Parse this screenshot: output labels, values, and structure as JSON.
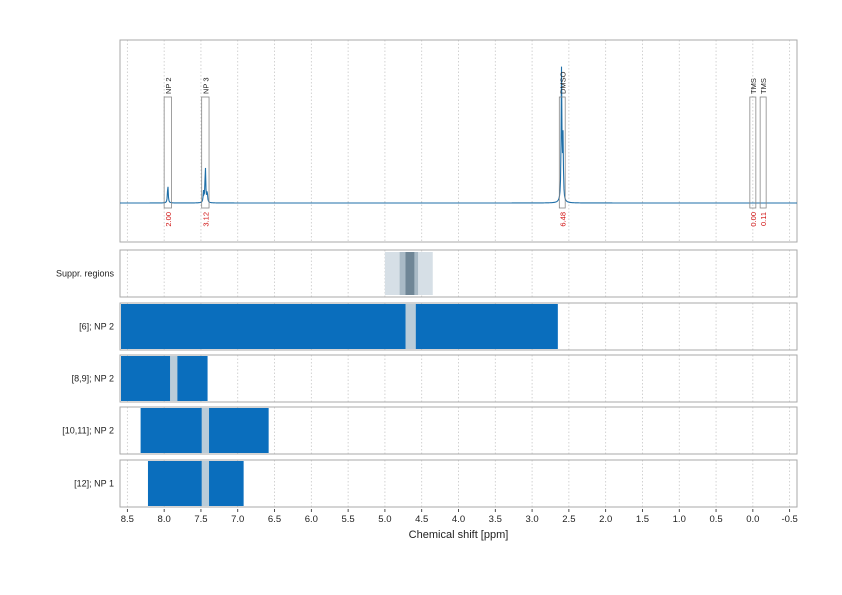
{
  "chart_data": {
    "type": "line",
    "xlabel": "Chemical shift [ppm]",
    "xlim": [
      8.6,
      -0.6
    ],
    "x_reversed": true,
    "x_ticks": [
      8.5,
      8.0,
      7.5,
      7.0,
      6.5,
      6.0,
      5.5,
      5.0,
      4.5,
      4.0,
      3.5,
      3.0,
      2.5,
      2.0,
      1.5,
      1.0,
      0.5,
      0.0,
      -0.5
    ],
    "x_tick_labels": [
      "8.5",
      "8.0",
      "7.5",
      "7.0",
      "6.5",
      "6.0",
      "5.5",
      "5.0",
      "4.5",
      "4.0",
      "3.5",
      "3.0",
      "2.5",
      "2.0",
      "1.5",
      "1.0",
      "0.5",
      "0.0",
      "-0.5"
    ],
    "grid": "vertical dotted",
    "colors": {
      "spectrum": "#1f6fa8",
      "bar": "#0a6ebd",
      "gap": "#b9ccd9",
      "suppr_outer": "#d6dfe6",
      "suppr_inner": "#6f8696",
      "integral_text": "#d01010",
      "box": "#888888"
    },
    "spectrum_peaks": [
      {
        "ppm": 7.95,
        "height": 0.12
      },
      {
        "ppm": 7.465,
        "height": 0.07
      },
      {
        "ppm": 7.44,
        "height": 0.24
      },
      {
        "ppm": 7.415,
        "height": 0.07
      },
      {
        "ppm": 2.6,
        "height": 0.85
      },
      {
        "ppm": 2.58,
        "height": 0.4
      }
    ],
    "peak_annotations": [
      {
        "label": "NP 2",
        "ppm_start": 8.0,
        "ppm_end": 7.9,
        "integral": "2.00"
      },
      {
        "label": "NP 3",
        "ppm_start": 7.49,
        "ppm_end": 7.39,
        "integral": "3.12"
      },
      {
        "label": "DMSO",
        "ppm_start": 2.63,
        "ppm_end": 2.55,
        "integral": "6.48"
      },
      {
        "label": "TMS",
        "ppm_start": 0.03,
        "ppm_end": -0.03,
        "integral": "0.00"
      },
      {
        "label": "TMS",
        "ppm_start": -0.11,
        "ppm_end": -0.17,
        "integral": "0.11"
      }
    ],
    "rows": [
      {
        "label": "Suppr. regions",
        "kind": "suppression",
        "outer": [
          5.0,
          4.35
        ],
        "inner": [
          4.8,
          4.55
        ],
        "core": [
          4.72,
          4.6
        ]
      },
      {
        "label": "[6]; NP 2",
        "kind": "bar",
        "range": [
          8.6,
          2.65
        ],
        "gap": [
          4.72,
          4.58
        ]
      },
      {
        "label": "[8,9]; NP 2",
        "kind": "bar",
        "range": [
          8.6,
          7.41
        ],
        "gap": [
          7.92,
          7.82
        ]
      },
      {
        "label": "[10,11]; NP 2",
        "kind": "bar",
        "range": [
          8.32,
          6.58
        ],
        "gap": [
          7.49,
          7.39
        ]
      },
      {
        "label": "[12]; NP 1",
        "kind": "bar",
        "range": [
          8.22,
          6.92
        ],
        "gap": [
          7.49,
          7.39
        ]
      }
    ]
  }
}
